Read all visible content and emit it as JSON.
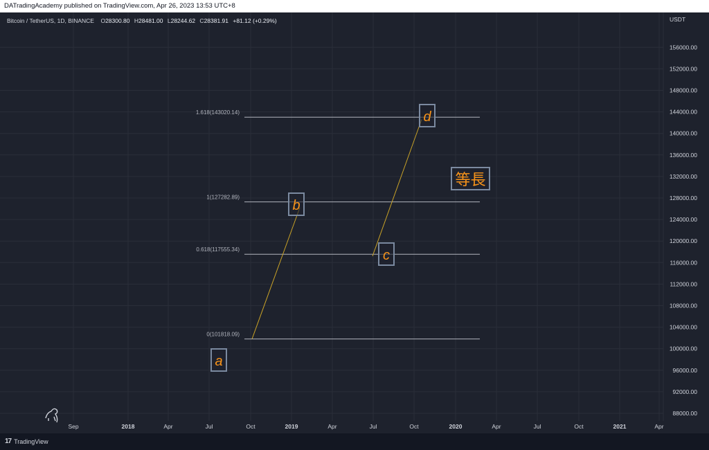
{
  "header": {
    "published_line": "DATradingAcademy published on TradingView.com, Apr 26, 2023 13:53 UTC+8"
  },
  "symbol": {
    "name": "Bitcoin / TetherUS, 1D, BINANCE",
    "open_label": "O",
    "open": "28300.80",
    "high_label": "H",
    "high": "28481.00",
    "low_label": "L",
    "low": "28244.62",
    "close_label": "C",
    "close": "28381.91",
    "change": "+81.12 (+0.29%)"
  },
  "price_axis": {
    "unit": "USDT",
    "ticks": [
      "156000.00",
      "152000.00",
      "148000.00",
      "144000.00",
      "140000.00",
      "136000.00",
      "132000.00",
      "128000.00",
      "124000.00",
      "120000.00",
      "116000.00",
      "112000.00",
      "108000.00",
      "104000.00",
      "100000.00",
      "96000.00",
      "92000.00",
      "88000.00"
    ],
    "min": 84000,
    "max": 160000
  },
  "time_axis": {
    "labels": [
      {
        "text": "Sep",
        "bold": false
      },
      {
        "text": "2018",
        "bold": true
      },
      {
        "text": "Apr",
        "bold": false
      },
      {
        "text": "Jul",
        "bold": false
      },
      {
        "text": "Oct",
        "bold": false
      },
      {
        "text": "2019",
        "bold": true
      },
      {
        "text": "Apr",
        "bold": false
      },
      {
        "text": "Jul",
        "bold": false
      },
      {
        "text": "Oct",
        "bold": false
      },
      {
        "text": "2020",
        "bold": true
      },
      {
        "text": "Apr",
        "bold": false
      },
      {
        "text": "Jul",
        "bold": false
      },
      {
        "text": "Oct",
        "bold": false
      },
      {
        "text": "2021",
        "bold": true
      },
      {
        "text": "Apr",
        "bold": false
      }
    ]
  },
  "fib_levels": [
    {
      "label": "1.618(143020.14)",
      "price": 143020.14
    },
    {
      "label": "1(127282.89)",
      "price": 127282.89
    },
    {
      "label": "0.618(117555.34)",
      "price": 117555.34
    },
    {
      "label": "0(101818.09)",
      "price": 101818.09
    }
  ],
  "points": [
    {
      "label": "a",
      "price": 99500
    },
    {
      "label": "b",
      "price": 127800
    },
    {
      "label": "c",
      "price": 116800
    },
    {
      "label": "d",
      "price": 142600
    }
  ],
  "annotation": {
    "text": "等長"
  },
  "colors": {
    "background": "#1e222d",
    "grid": "#2a2e39",
    "fib_line": "#b2b5be",
    "trend_line": "#c9a227",
    "label_text": "#f7931a",
    "box_border": "#7b8aa0"
  },
  "footer": {
    "brand": "TradingView"
  }
}
